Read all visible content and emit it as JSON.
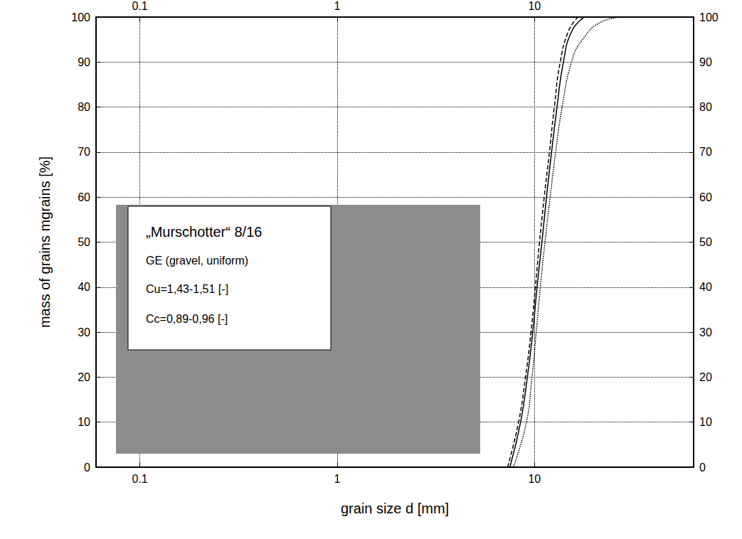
{
  "chart_data": {
    "type": "line",
    "x_label": "grain size d [mm]",
    "y_label": "mass of grains mgrains [%]",
    "log": "x",
    "grid": true,
    "xlim": [
      0.06,
      64
    ],
    "xticks": [
      0.1,
      1,
      10
    ],
    "ylim": [
      0,
      100
    ],
    "yticks": [
      0,
      10,
      20,
      30,
      40,
      50,
      60,
      70,
      80,
      90,
      100
    ],
    "annotations": [
      "„Murschotter“ 8/16",
      "GE (gravel, uniform)",
      "Cu=1,43-1,51 [-]",
      "Cc=0,89-0,96 [-]"
    ],
    "series": [
      {
        "color": "#000000",
        "line_style": "solid",
        "x": [
          7.5,
          8.5,
          9.2,
          9.8,
          10.3,
          10.9,
          11.5,
          12.2,
          13.0,
          14.0,
          15.5,
          17.9
        ],
        "values": [
          0,
          10,
          20,
          30,
          40,
          50,
          60,
          70,
          80,
          90,
          97,
          100
        ]
      },
      {
        "color": "#000000",
        "line_style": "dashed",
        "x": [
          7.3,
          8.3,
          9.0,
          9.6,
          10.1,
          10.6,
          11.2,
          11.9,
          12.6,
          13.5,
          14.9,
          16.6
        ],
        "values": [
          0,
          10,
          20,
          30,
          40,
          50,
          60,
          70,
          80,
          90,
          97,
          100
        ]
      },
      {
        "color": "#000000",
        "line_style": "dotted",
        "x": [
          7.8,
          9.1,
          9.7,
          10.2,
          10.7,
          11.3,
          12.0,
          12.8,
          13.8,
          15.4,
          17.5,
          22,
          28
        ],
        "values": [
          0,
          10,
          20,
          30,
          40,
          50,
          60,
          70,
          80,
          90,
          95,
          99,
          100
        ]
      }
    ]
  }
}
